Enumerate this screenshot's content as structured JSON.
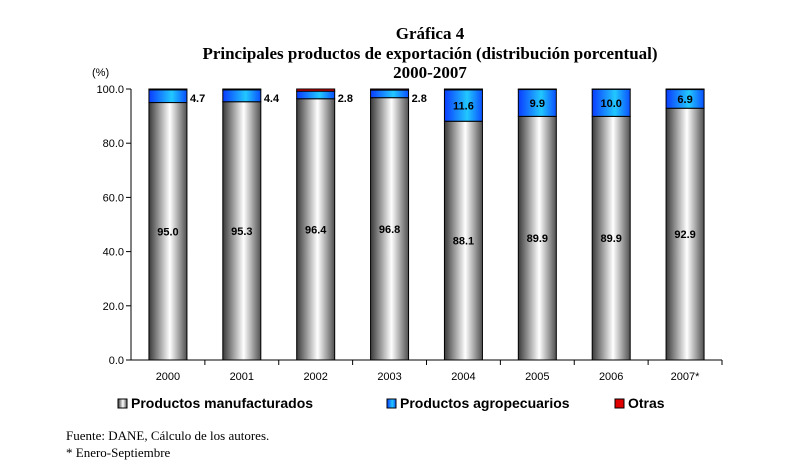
{
  "chart_data": {
    "type": "bar",
    "stacked": true,
    "title": "Gráfica 4",
    "subtitle": "Principales productos de exportación (distribución porcentual)",
    "subtitle2": "2000-2007",
    "ylabel": "(%)",
    "ylim": [
      0,
      100
    ],
    "yticks": [
      "0.0",
      "20.0",
      "40.0",
      "60.0",
      "80.0",
      "100.0"
    ],
    "categories": [
      "2000",
      "2001",
      "2002",
      "2003",
      "2004",
      "2005",
      "2006",
      "2007*"
    ],
    "series": [
      {
        "name": "Productos manufacturados",
        "color": "#c8c8c8",
        "values": [
          95.0,
          95.3,
          96.4,
          96.8,
          88.1,
          89.9,
          89.9,
          92.9
        ],
        "labels": [
          "95.0",
          "95.3",
          "96.4",
          "96.8",
          "88.1",
          "89.9",
          "89.9",
          "92.9"
        ]
      },
      {
        "name": "Productos agropecuarios",
        "color": "#1a9cff",
        "values": [
          4.7,
          4.4,
          2.8,
          2.8,
          11.6,
          9.9,
          10.0,
          6.9
        ],
        "labels": [
          "4.7",
          "4.4",
          "2.8",
          "2.8",
          "11.6",
          "9.9",
          "10.0",
          "6.9"
        ]
      },
      {
        "name": "Otras",
        "color": "#e00000",
        "values": [
          0.3,
          0.3,
          0.8,
          0.4,
          0.3,
          0.2,
          0.1,
          0.2
        ]
      }
    ],
    "legend": "bottom",
    "grid": false
  },
  "footer": {
    "source": "Fuente: DANE, Cálculo de los autores.",
    "note": "* Enero-Septiembre"
  }
}
